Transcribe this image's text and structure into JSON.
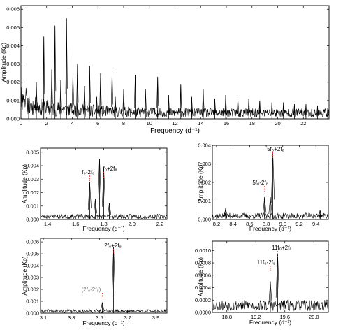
{
  "chart_data": [
    {
      "type": "line",
      "ylabel": "Amplitude (Kp)",
      "xlabel": "Frequency (d⁻¹)",
      "xlim": [
        0,
        24
      ],
      "ylim": [
        0,
        0.0062
      ],
      "xticks": [
        "0",
        "2",
        "4",
        "6",
        "8",
        "10",
        "12",
        "14",
        "16",
        "18",
        "20",
        "22"
      ],
      "yticks": [
        "0.000",
        "0.001",
        "0.002",
        "0.003",
        "0.004",
        "0.005",
        "0.006"
      ],
      "peaks": {
        "x": [
          0.6,
          1.2,
          1.78,
          2.4,
          2.65,
          3.1,
          3.55,
          4.05,
          4.4,
          4.95,
          5.35,
          5.9,
          6.2,
          7.1,
          7.35,
          8.0,
          8.9,
          9.7,
          10.65,
          11.5,
          12.45,
          13.3,
          14.2,
          15.1,
          15.95,
          16.9,
          17.75,
          18.6,
          19.55,
          20.45,
          21.3,
          22.2,
          23.1,
          23.9
        ],
        "y": [
          0.0011,
          0.002,
          0.0045,
          0.0027,
          0.0051,
          0.0021,
          0.0055,
          0.0025,
          0.003,
          0.0018,
          0.0029,
          0.0012,
          0.0025,
          0.0026,
          0.0012,
          0.0016,
          0.0024,
          0.0016,
          0.0023,
          0.0013,
          0.0019,
          0.0012,
          0.0016,
          0.0011,
          0.0013,
          0.0011,
          0.0011,
          0.001,
          0.0009,
          0.0009,
          0.0008,
          0.0008,
          0.0007,
          0.0006
        ]
      },
      "grid": false
    },
    {
      "type": "line",
      "ylabel": "Amplitude (Kp)",
      "xlabel": "Frequency (d⁻¹)",
      "xlim": [
        1.35,
        2.25
      ],
      "ylim": [
        0,
        0.0053
      ],
      "xticks": [
        "1.4",
        "1.6",
        "1.8",
        "2.0",
        "2.2"
      ],
      "yticks": [
        "0.000",
        "0.001",
        "0.002",
        "0.003",
        "0.004",
        "0.005"
      ],
      "peaks": {
        "x": [
          1.7,
          1.74,
          1.77,
          1.8,
          1.84
        ],
        "y": [
          0.0028,
          0.0015,
          0.0045,
          0.0038,
          0.0012
        ]
      },
      "annotations": [
        {
          "text": "f₀-2f₈",
          "x": 1.7
        },
        {
          "text": "f₀+2f₈",
          "x": 1.8
        }
      ]
    },
    {
      "type": "line",
      "ylabel": "Amplitude (Kp)",
      "xlabel": "Frequency (d⁻¹)",
      "xlim": [
        8.15,
        9.55
      ],
      "ylim": [
        0,
        0.004
      ],
      "xticks": [
        "8.2",
        "8.4",
        "8.6",
        "8.8",
        "9.0",
        "9.2",
        "9.4"
      ],
      "yticks": [
        "0.000",
        "0.001",
        "0.002",
        "0.003",
        "0.004"
      ],
      "peaks": {
        "x": [
          8.31,
          8.78,
          8.85,
          8.88,
          9.45
        ],
        "y": [
          0.0006,
          0.0012,
          0.0012,
          0.0036,
          0.0005
        ]
      },
      "annotations": [
        {
          "text": "5f₀+2f₈",
          "x": 8.88
        },
        {
          "text": "5f₀-2f₈",
          "x": 8.78
        }
      ]
    },
    {
      "type": "line",
      "ylabel": "Amplitude (Kp)",
      "xlabel": "Frequency (d⁻¹)",
      "xlim": [
        3.08,
        3.98
      ],
      "ylim": [
        0,
        0.0063
      ],
      "xticks": [
        "3.1",
        "3.3",
        "3.5",
        "3.7",
        "3.9"
      ],
      "yticks": [
        "0.000",
        "0.001",
        "0.002",
        "0.003",
        "0.004",
        "0.005",
        "0.006"
      ],
      "peaks": {
        "x": [
          3.52,
          3.6
        ],
        "y": [
          0.0009,
          0.0056
        ]
      },
      "annotations": [
        {
          "text": "2f₀+2f₈",
          "x": 3.6
        },
        {
          "text": "(2f₀-2f₈)",
          "x": 3.52
        }
      ]
    },
    {
      "type": "line",
      "ylabel": "Amplitude (Kp)",
      "xlabel": "Frequency (d⁻¹)",
      "xlim": [
        18.6,
        20.2
      ],
      "ylim": [
        0,
        0.00115
      ],
      "xticks": [
        "18.8",
        "19.2",
        "19.6",
        "20.0"
      ],
      "yticks": [
        "0.0000",
        "0.0002",
        "0.0004",
        "0.0006",
        "0.0008",
        "0.0010"
      ],
      "peaks": {
        "x": [
          19.4,
          19.5
        ],
        "y": [
          0.0005,
          0.00095
        ]
      },
      "annotations": [
        {
          "text": "11f₀+2f₈",
          "x": 19.5
        },
        {
          "text": "11f₀-2f₈",
          "x": 19.4
        }
      ]
    }
  ]
}
